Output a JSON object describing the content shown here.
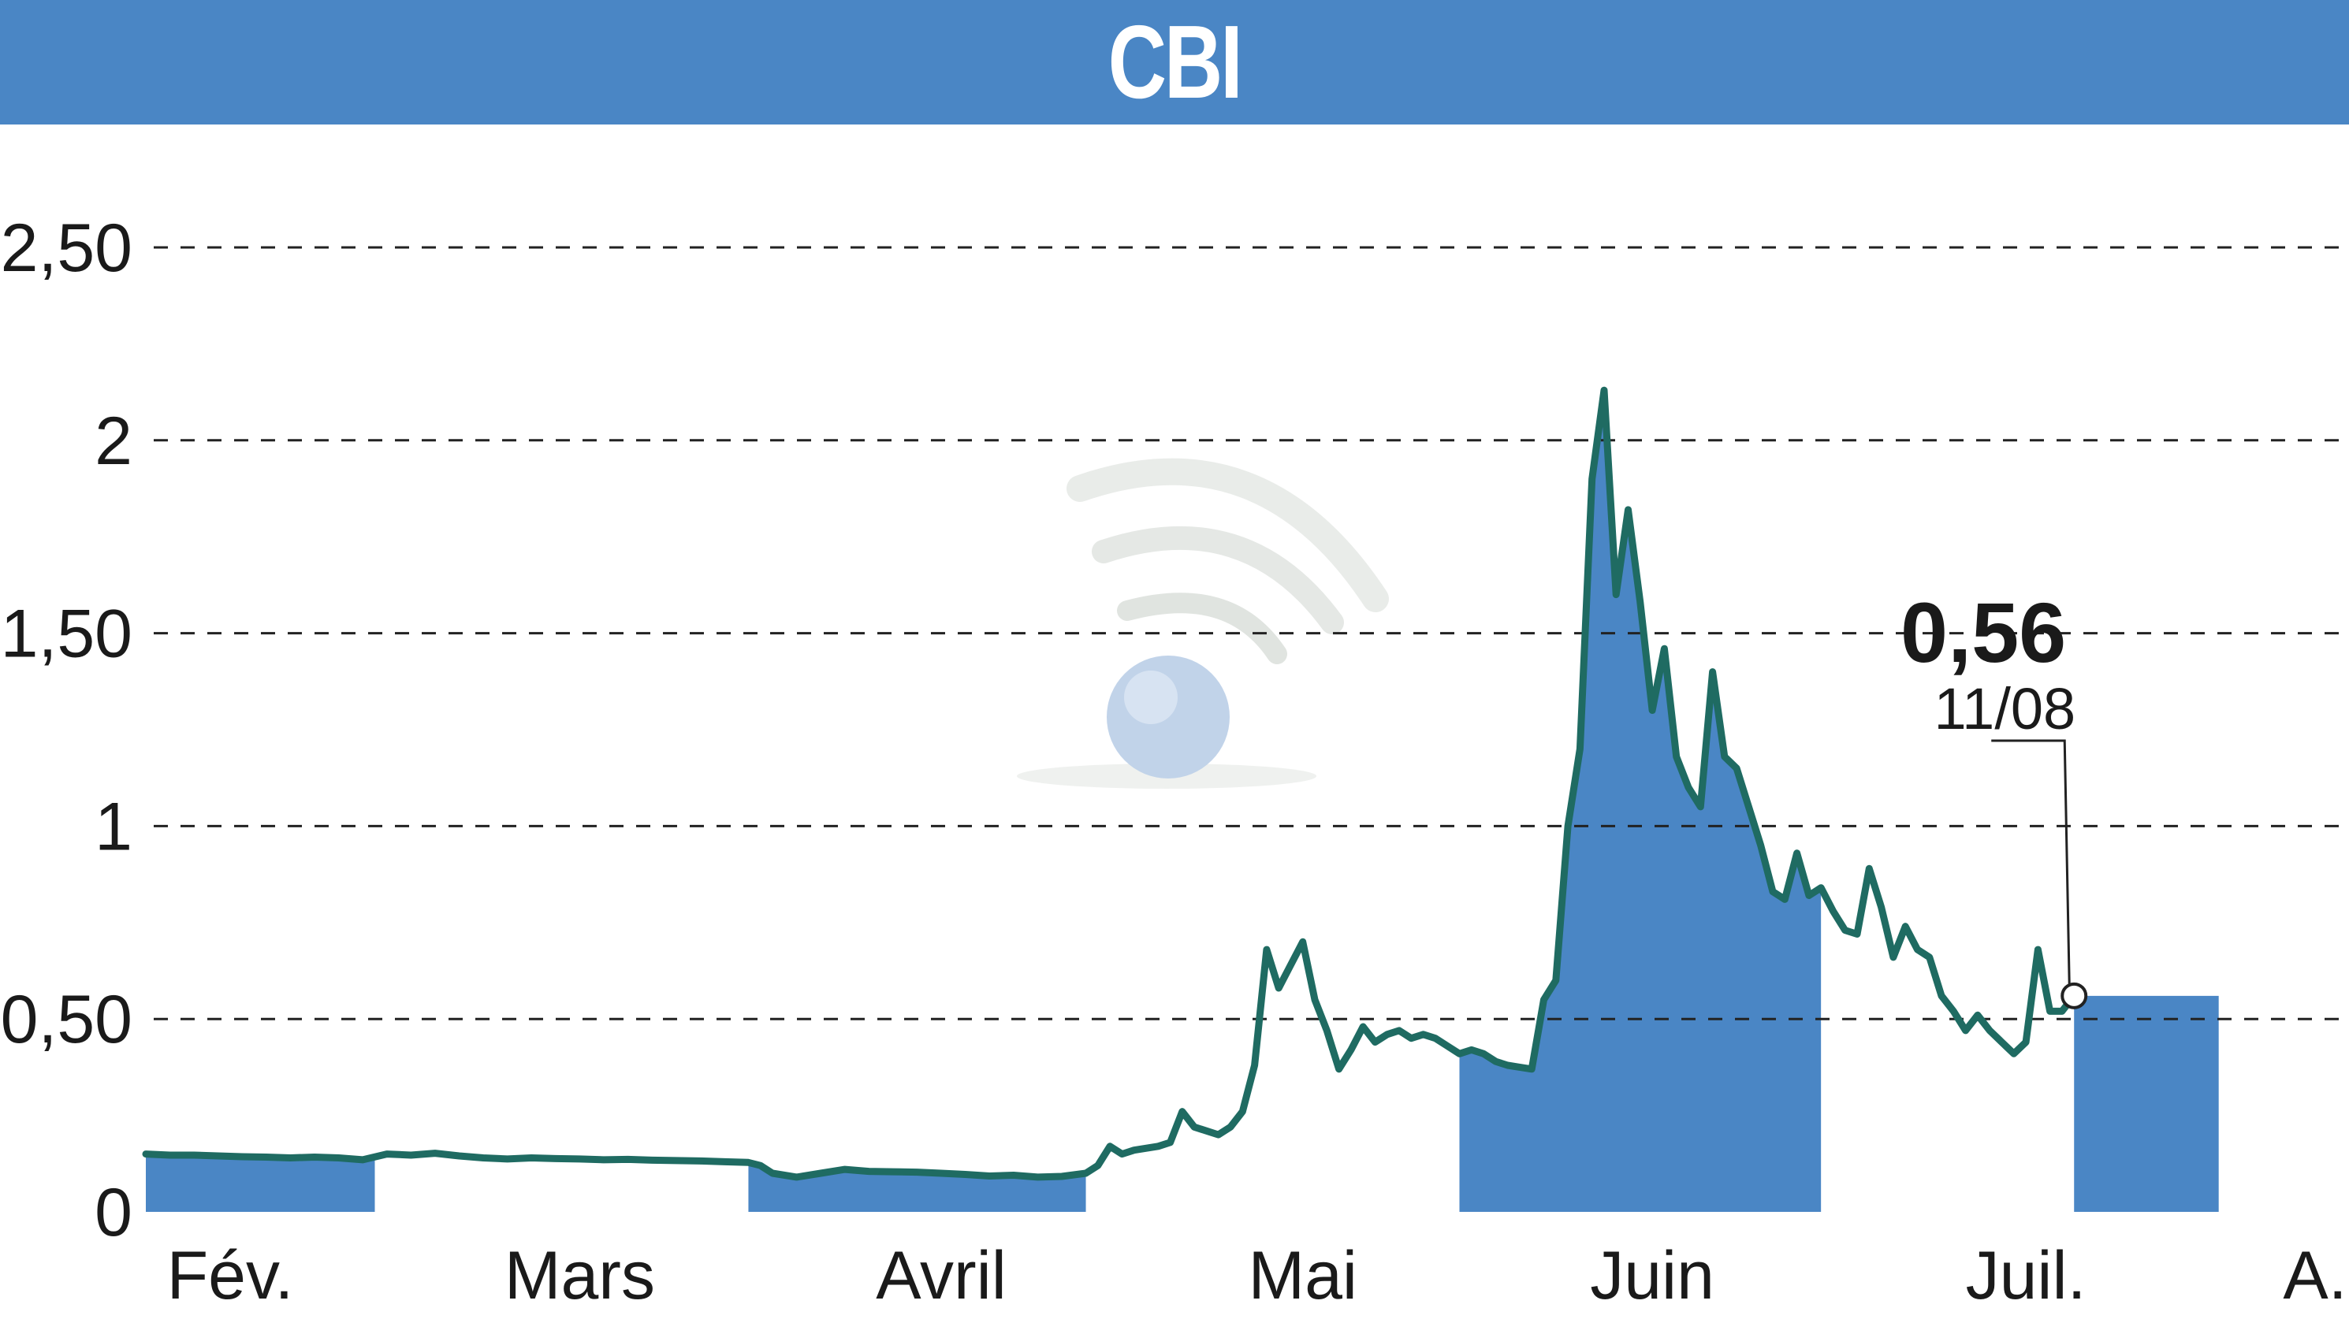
{
  "header": {
    "title": "CBI"
  },
  "colors": {
    "header_bg": "#4a86c5",
    "line": "#1f6b62",
    "fill": "#4a86c5",
    "grid": "#222222"
  },
  "chart_data": {
    "type": "area",
    "title": "CBI",
    "xlabel": "",
    "ylabel": "",
    "ylim": [
      0,
      2.5
    ],
    "grid": true,
    "y_ticks": [
      {
        "value": 0,
        "label": "0"
      },
      {
        "value": 0.5,
        "label": "0,50"
      },
      {
        "value": 1,
        "label": "1"
      },
      {
        "value": 1.5,
        "label": "1,50"
      },
      {
        "value": 2,
        "label": "2"
      },
      {
        "value": 2.5,
        "label": "2,50"
      }
    ],
    "x_ticks": [
      {
        "day": 7,
        "label": "Fév."
      },
      {
        "day": 36,
        "label": "Mars"
      },
      {
        "day": 66,
        "label": "Avril"
      },
      {
        "day": 96,
        "label": "Mai"
      },
      {
        "day": 125,
        "label": "Juin"
      },
      {
        "day": 156,
        "label": "Juil."
      },
      {
        "day": 180,
        "label": "A."
      }
    ],
    "shaded_month_spans": [
      [
        0,
        19
      ],
      [
        50,
        78
      ],
      [
        109,
        139
      ],
      [
        172,
        180
      ]
    ],
    "series": [
      {
        "values": [
          [
            0,
            0.15
          ],
          [
            2,
            0.147
          ],
          [
            4,
            0.147
          ],
          [
            6,
            0.145
          ],
          [
            8,
            0.143
          ],
          [
            10,
            0.142
          ],
          [
            12,
            0.14
          ],
          [
            14,
            0.142
          ],
          [
            16,
            0.14
          ],
          [
            18,
            0.135
          ],
          [
            20,
            0.15
          ],
          [
            22,
            0.147
          ],
          [
            24,
            0.152
          ],
          [
            26,
            0.145
          ],
          [
            28,
            0.14
          ],
          [
            30,
            0.137
          ],
          [
            32,
            0.14
          ],
          [
            34,
            0.138
          ],
          [
            36,
            0.137
          ],
          [
            38,
            0.135
          ],
          [
            40,
            0.136
          ],
          [
            42,
            0.134
          ],
          [
            44,
            0.133
          ],
          [
            46,
            0.132
          ],
          [
            48,
            0.13
          ],
          [
            50,
            0.128
          ],
          [
            51,
            0.12
          ],
          [
            52,
            0.1
          ],
          [
            54,
            0.09
          ],
          [
            56,
            0.1
          ],
          [
            58,
            0.11
          ],
          [
            60,
            0.105
          ],
          [
            62,
            0.104
          ],
          [
            64,
            0.103
          ],
          [
            66,
            0.1
          ],
          [
            68,
            0.097
          ],
          [
            70,
            0.093
          ],
          [
            72,
            0.095
          ],
          [
            74,
            0.09
          ],
          [
            76,
            0.092
          ],
          [
            78,
            0.1
          ],
          [
            79,
            0.12
          ],
          [
            80,
            0.17
          ],
          [
            81,
            0.15
          ],
          [
            82,
            0.16
          ],
          [
            84,
            0.17
          ],
          [
            85,
            0.18
          ],
          [
            86,
            0.26
          ],
          [
            87,
            0.22
          ],
          [
            88,
            0.21
          ],
          [
            89,
            0.2
          ],
          [
            90,
            0.22
          ],
          [
            91,
            0.26
          ],
          [
            92,
            0.38
          ],
          [
            93,
            0.68
          ],
          [
            94,
            0.58
          ],
          [
            95,
            0.64
          ],
          [
            96,
            0.7
          ],
          [
            97,
            0.55
          ],
          [
            98,
            0.47
          ],
          [
            99,
            0.37
          ],
          [
            100,
            0.42
          ],
          [
            101,
            0.48
          ],
          [
            102,
            0.44
          ],
          [
            103,
            0.46
          ],
          [
            104,
            0.47
          ],
          [
            105,
            0.45
          ],
          [
            106,
            0.46
          ],
          [
            107,
            0.45
          ],
          [
            108,
            0.43
          ],
          [
            109,
            0.41
          ],
          [
            110,
            0.42
          ],
          [
            111,
            0.41
          ],
          [
            112,
            0.39
          ],
          [
            113,
            0.38
          ],
          [
            114,
            0.375
          ],
          [
            115,
            0.37
          ],
          [
            116,
            0.55
          ],
          [
            117,
            0.6
          ],
          [
            118,
            1.0
          ],
          [
            119,
            1.2
          ],
          [
            120,
            1.9
          ],
          [
            121,
            2.13
          ],
          [
            122,
            1.6
          ],
          [
            123,
            1.82
          ],
          [
            124,
            1.58
          ],
          [
            125,
            1.3
          ],
          [
            126,
            1.46
          ],
          [
            127,
            1.18
          ],
          [
            128,
            1.1
          ],
          [
            129,
            1.05
          ],
          [
            130,
            1.4
          ],
          [
            131,
            1.18
          ],
          [
            132,
            1.15
          ],
          [
            133,
            1.05
          ],
          [
            134,
            0.95
          ],
          [
            135,
            0.83
          ],
          [
            136,
            0.81
          ],
          [
            137,
            0.93
          ],
          [
            138,
            0.82
          ],
          [
            139,
            0.84
          ],
          [
            140,
            0.78
          ],
          [
            141,
            0.73
          ],
          [
            142,
            0.72
          ],
          [
            143,
            0.89
          ],
          [
            144,
            0.79
          ],
          [
            145,
            0.66
          ],
          [
            146,
            0.74
          ],
          [
            147,
            0.68
          ],
          [
            148,
            0.66
          ],
          [
            149,
            0.56
          ],
          [
            150,
            0.52
          ],
          [
            151,
            0.47
          ],
          [
            152,
            0.51
          ],
          [
            153,
            0.47
          ],
          [
            154,
            0.44
          ],
          [
            155,
            0.41
          ],
          [
            156,
            0.44
          ],
          [
            157,
            0.68
          ],
          [
            158,
            0.52
          ],
          [
            159,
            0.52
          ],
          [
            160,
            0.56
          ]
        ]
      }
    ],
    "annotations": [
      {
        "type": "last-value",
        "value_label": "0,56",
        "date_label": "11/08"
      }
    ]
  }
}
